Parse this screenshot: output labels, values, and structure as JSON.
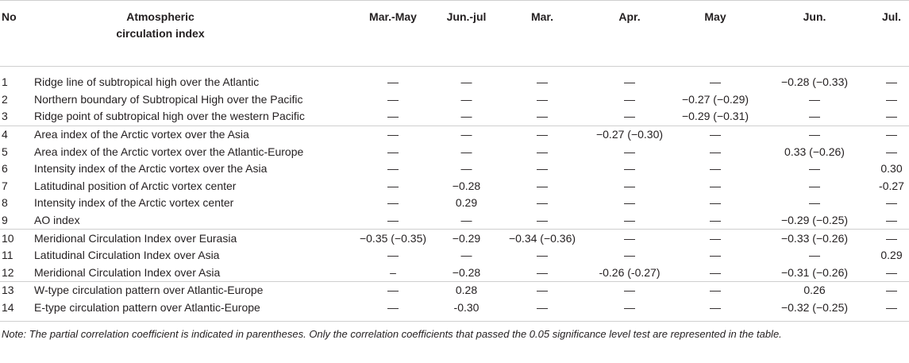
{
  "table": {
    "headers": [
      "No",
      "Atmospheric circulation index",
      "Mar.-May",
      "Jun.-jul",
      "Mar.",
      "Apr.",
      "May",
      "Jun.",
      "Jul."
    ],
    "groups": [
      [
        [
          "1",
          "Ridge line of subtropical high over the Atlantic",
          "—",
          "—",
          "—",
          "—",
          "—",
          "−0.28 (−0.33)",
          "—"
        ],
        [
          "2",
          "Northern boundary of Subtropical High over the Pacific",
          "—",
          "—",
          "—",
          "—",
          "−0.27 (−0.29)",
          "—",
          "—"
        ],
        [
          "3",
          "Ridge point of subtropical high over the western Pacific",
          "—",
          "—",
          "—",
          "—",
          "−0.29 (−0.31)",
          "—",
          "—"
        ]
      ],
      [
        [
          "4",
          "Area index of the Arctic vortex over the Asia",
          "—",
          "—",
          "—",
          "−0.27 (−0.30)",
          "—",
          "—",
          "—"
        ],
        [
          "5",
          "Area index of the Arctic vortex over the Atlantic-Europe",
          "—",
          "—",
          "—",
          "—",
          "—",
          "0.33 (−0.26)",
          "—"
        ],
        [
          "6",
          "Intensity index of the Arctic vortex over the Asia",
          "—",
          "—",
          "—",
          "—",
          "—",
          "—",
          "0.30"
        ],
        [
          "7",
          "Latitudinal position of Arctic vortex center",
          "—",
          "−0.28",
          "—",
          "—",
          "—",
          "—",
          "-0.27"
        ],
        [
          "8",
          "Intensity index of the Arctic vortex center",
          "—",
          "0.29",
          "—",
          "—",
          "—",
          "—",
          "—"
        ],
        [
          "9",
          "AO index",
          "—",
          "—",
          "—",
          "—",
          "—",
          "−0.29 (−0.25)",
          "—"
        ]
      ],
      [
        [
          "10",
          "Meridional Circulation Index over Eurasia",
          "−0.35 (−0.35)",
          "−0.29",
          "−0.34 (−0.36)",
          "—",
          "—",
          "−0.33 (−0.26)",
          "—"
        ],
        [
          "11",
          "Latitudinal Circulation Index over Asia",
          "—",
          "—",
          "—",
          "—",
          "—",
          "—",
          "0.29"
        ],
        [
          "12",
          "Meridional Circulation Index over Asia",
          "–",
          "−0.28",
          "—",
          "-0.26 (-0.27)",
          "—",
          "−0.31 (−0.26)",
          "—"
        ]
      ],
      [
        [
          "13",
          "W-type circulation pattern over Atlantic-Europe",
          "—",
          "0.28",
          "—",
          "—",
          "—",
          "0.26",
          "—"
        ],
        [
          "14",
          "E-type circulation pattern over Atlantic-Europe",
          "—",
          "-0.30",
          "—",
          "—",
          "—",
          "−0.32 (−0.25)",
          "—"
        ]
      ]
    ]
  },
  "note": "Note: The partial correlation coefficient is indicated in parentheses. Only the correlation coefficients that passed the 0.05 significance level test are represented in the table."
}
